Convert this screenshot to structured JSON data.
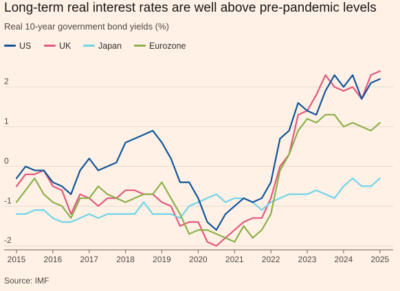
{
  "title": "Long-term real interest rates are well above pre-pandemic levels",
  "subtitle": "Real 10-year government bond yields (%)",
  "source": "Source: IMF",
  "chart_data": {
    "type": "line",
    "title": "Long-term real interest rates are well above pre-pandemic levels",
    "subtitle": "Real 10-year government bond yields (%)",
    "xlabel": "",
    "ylabel": "",
    "xlim": [
      2015,
      2025.25
    ],
    "ylim": [
      -2.1,
      2.6
    ],
    "x_ticks": [
      2015,
      2016,
      2017,
      2018,
      2019,
      2020,
      2021,
      2022,
      2023,
      2024,
      2025
    ],
    "y_ticks": [
      -2,
      -1,
      0,
      1,
      2
    ],
    "grid": "horizontal",
    "legend_position": "top-left",
    "x": [
      2015.0,
      2015.25,
      2015.5,
      2015.75,
      2016.0,
      2016.25,
      2016.5,
      2016.75,
      2017.0,
      2017.25,
      2017.5,
      2017.75,
      2018.0,
      2018.25,
      2018.5,
      2018.75,
      2019.0,
      2019.25,
      2019.5,
      2019.75,
      2020.0,
      2020.25,
      2020.5,
      2020.75,
      2021.0,
      2021.25,
      2021.5,
      2021.75,
      2022.0,
      2022.25,
      2022.5,
      2022.75,
      2023.0,
      2023.25,
      2023.5,
      2023.75,
      2024.0,
      2024.25,
      2024.5,
      2024.75,
      2025.0
    ],
    "series": [
      {
        "name": "US",
        "color": "#0f5499",
        "values": [
          -0.3,
          0.0,
          -0.1,
          -0.1,
          -0.4,
          -0.5,
          -0.7,
          -0.1,
          0.2,
          -0.1,
          0.0,
          0.1,
          0.6,
          0.7,
          0.8,
          0.9,
          0.6,
          0.2,
          -0.4,
          -0.4,
          -0.8,
          -1.4,
          -1.6,
          -1.2,
          -1.0,
          -0.8,
          -0.9,
          -0.8,
          -0.4,
          0.7,
          0.9,
          1.6,
          1.4,
          1.3,
          1.9,
          2.3,
          2.0,
          2.3,
          1.7,
          2.1,
          2.2
        ]
      },
      {
        "name": "UK",
        "color": "#e3577d",
        "values": [
          -0.5,
          -0.2,
          -0.2,
          -0.1,
          -0.5,
          -0.6,
          -1.2,
          -0.7,
          -0.8,
          -1.0,
          -0.8,
          -0.8,
          -0.6,
          -0.6,
          -0.7,
          -0.7,
          -0.9,
          -1.0,
          -1.5,
          -1.4,
          -1.4,
          -1.9,
          -2.0,
          -1.8,
          -1.6,
          -1.4,
          -1.3,
          -1.3,
          -0.8,
          0.0,
          0.3,
          1.3,
          1.4,
          1.8,
          2.3,
          2.0,
          1.9,
          2.0,
          1.7,
          2.3,
          2.4
        ]
      },
      {
        "name": "Japan",
        "color": "#6fd4e8",
        "values": [
          -1.2,
          -1.2,
          -1.1,
          -1.1,
          -1.3,
          -1.4,
          -1.4,
          -1.3,
          -1.2,
          -1.3,
          -1.2,
          -1.2,
          -1.2,
          -1.2,
          -0.9,
          -1.2,
          -1.2,
          -1.2,
          -1.3,
          -1.0,
          -0.9,
          -0.8,
          -0.7,
          -0.9,
          -0.8,
          -0.8,
          -0.9,
          -1.1,
          -0.9,
          -0.8,
          -0.7,
          -0.7,
          -0.7,
          -0.6,
          -0.7,
          -0.8,
          -0.5,
          -0.3,
          -0.5,
          -0.5,
          -0.3
        ]
      },
      {
        "name": "Eurozone",
        "color": "#8ab04b",
        "values": [
          -0.9,
          -0.6,
          -0.3,
          -0.7,
          -0.9,
          -1.0,
          -1.3,
          -0.8,
          -0.8,
          -0.5,
          -0.7,
          -0.8,
          -0.9,
          -0.8,
          -0.7,
          -0.7,
          -0.4,
          -0.8,
          -1.2,
          -1.7,
          -1.6,
          -1.6,
          -1.7,
          -1.8,
          -1.9,
          -1.5,
          -1.8,
          -1.6,
          -1.2,
          -0.1,
          0.3,
          0.9,
          1.2,
          1.1,
          1.3,
          1.3,
          1.0,
          1.1,
          1.0,
          0.9,
          1.1
        ]
      }
    ]
  }
}
